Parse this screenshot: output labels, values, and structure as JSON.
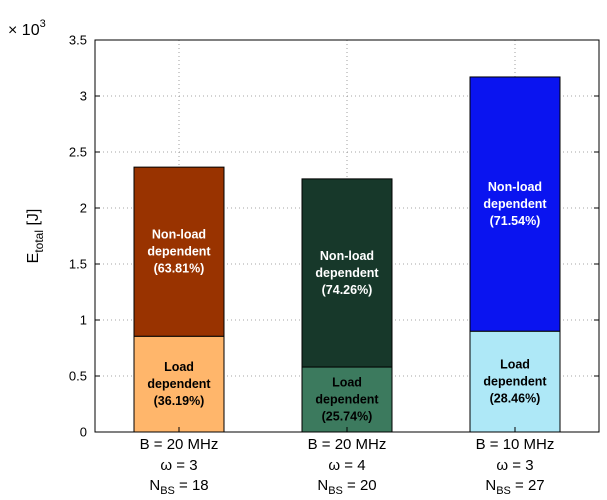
{
  "chart_data": {
    "type": "bar",
    "stacked": true,
    "ylabel": "E_total [J]",
    "ylabel_main": "E",
    "ylabel_sub": "total",
    "ylabel_unit": " [J]",
    "exponent_label": "× 10",
    "exponent_power": "3",
    "ylim": [
      0,
      3.5
    ],
    "yticks": [
      "0",
      "0.5",
      "1",
      "1.5",
      "2",
      "2.5",
      "3",
      "3.5"
    ],
    "grid": true,
    "categories": [
      {
        "line1": "B = 20 MHz",
        "line2": "ω = 3",
        "n_main": "N",
        "n_sub": "BS",
        "n_value": " = 18"
      },
      {
        "line1": "B = 20 MHz",
        "line2": "ω = 4",
        "n_main": "N",
        "n_sub": "BS",
        "n_value": " = 20"
      },
      {
        "line1": "B = 10 MHz",
        "line2": "ω = 3",
        "n_main": "N",
        "n_sub": "BS",
        "n_value": " = 27"
      }
    ],
    "bars": [
      {
        "load": 0.855,
        "nonload": 1.51,
        "load_color": "#ffb66b",
        "nonload_color": "#993300",
        "load_label": [
          "Load",
          "dependent",
          "(36.19%)"
        ],
        "nonload_label": [
          "Non-load",
          "dependent",
          "(63.81%)"
        ],
        "nonload_text_color": "#ffffff"
      },
      {
        "load": 0.58,
        "nonload": 1.68,
        "load_color": "#3c7a5e",
        "nonload_color": "#17382a",
        "load_label": [
          "Load",
          "dependent",
          "(25.74%)"
        ],
        "nonload_label": [
          "Non-load",
          "dependent",
          "(74.26%)"
        ],
        "nonload_text_color": "#ffffff"
      },
      {
        "load": 0.9,
        "nonload": 2.27,
        "load_color": "#aee8f7",
        "nonload_color": "#0a14f0",
        "load_label": [
          "Load",
          "dependent",
          "(28.46%)"
        ],
        "nonload_label": [
          "Non-load",
          "dependent",
          "(71.54%)"
        ],
        "nonload_text_color": "#ffffff"
      }
    ]
  }
}
